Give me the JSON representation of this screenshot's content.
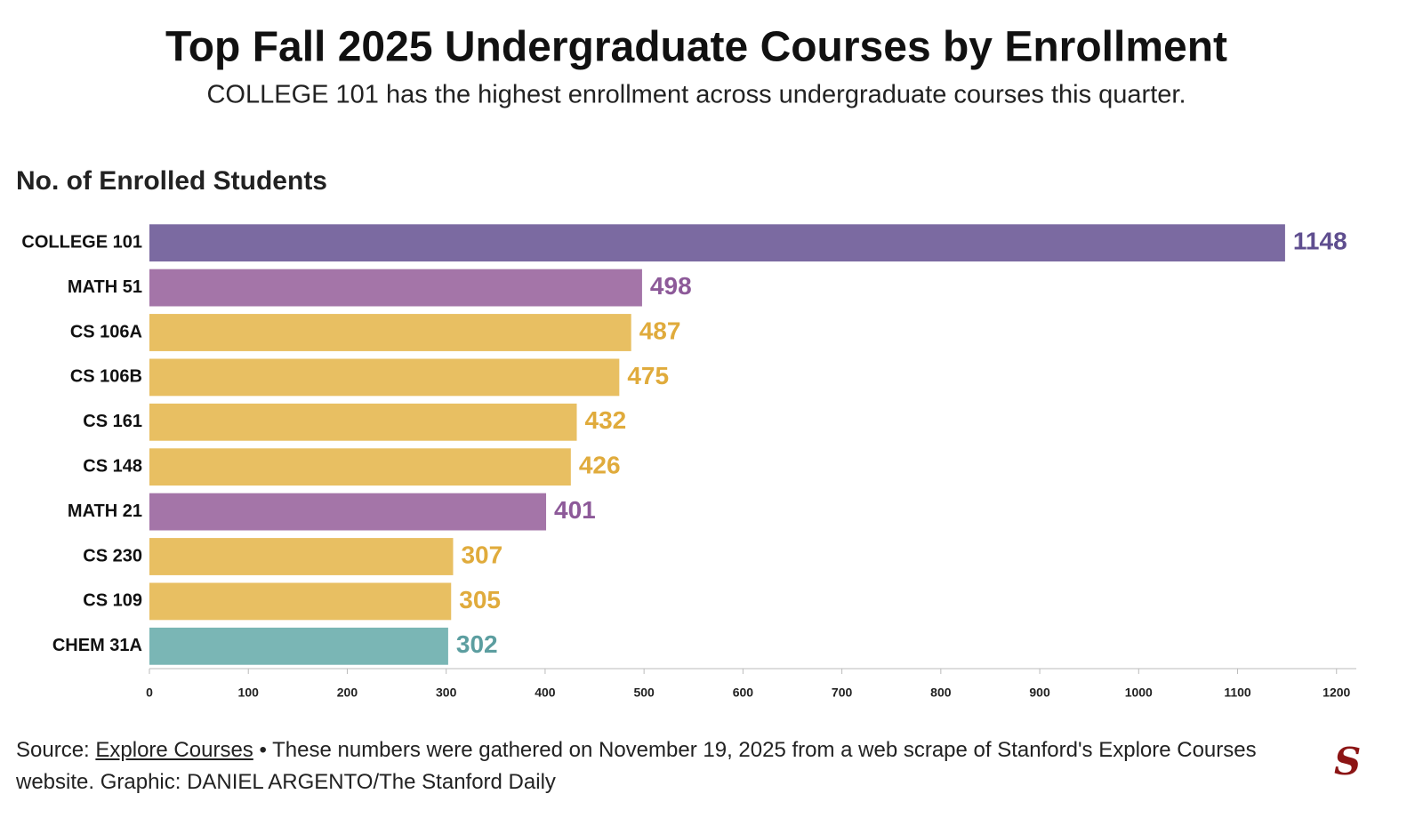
{
  "chart_data": {
    "type": "bar",
    "orientation": "horizontal",
    "title": "Top Fall 2025 Undergraduate Courses by Enrollment",
    "subtitle": "COLLEGE 101 has the highest enrollment across undergraduate courses this quarter.",
    "x_axis_title": "No. of Enrolled Students",
    "categories": [
      "COLLEGE 101",
      "MATH 51",
      "CS 106A",
      "CS 106B",
      "CS 161",
      "CS 148",
      "MATH 21",
      "CS 230",
      "CS 109",
      "CHEM 31A"
    ],
    "values": [
      1148,
      498,
      487,
      475,
      432,
      426,
      401,
      307,
      305,
      302
    ],
    "colors": [
      "#7b6aa1",
      "#a475a8",
      "#e8bf62",
      "#e8bf62",
      "#e8bf62",
      "#e8bf62",
      "#a475a8",
      "#e8bf62",
      "#e8bf62",
      "#7ab6b5"
    ],
    "value_label_colors": [
      "#5f4e8f",
      "#8d5a99",
      "#e0ab3c",
      "#e0ab3c",
      "#e0ab3c",
      "#e0ab3c",
      "#8d5a99",
      "#e0ab3c",
      "#e0ab3c",
      "#5c9ea0"
    ],
    "xlim": [
      0,
      1220
    ],
    "xticks": [
      0,
      100,
      200,
      300,
      400,
      500,
      600,
      700,
      800,
      900,
      1000,
      1100,
      1200
    ],
    "grid": false,
    "source_prefix": "Source:",
    "source_link": "Explore Courses",
    "source_note": "• These numbers were gathered on November 19, 2025 from a web scrape of Stanford's Explore Courses website. Graphic: DANIEL ARGENTO/The Stanford Daily",
    "logo": "S"
  }
}
